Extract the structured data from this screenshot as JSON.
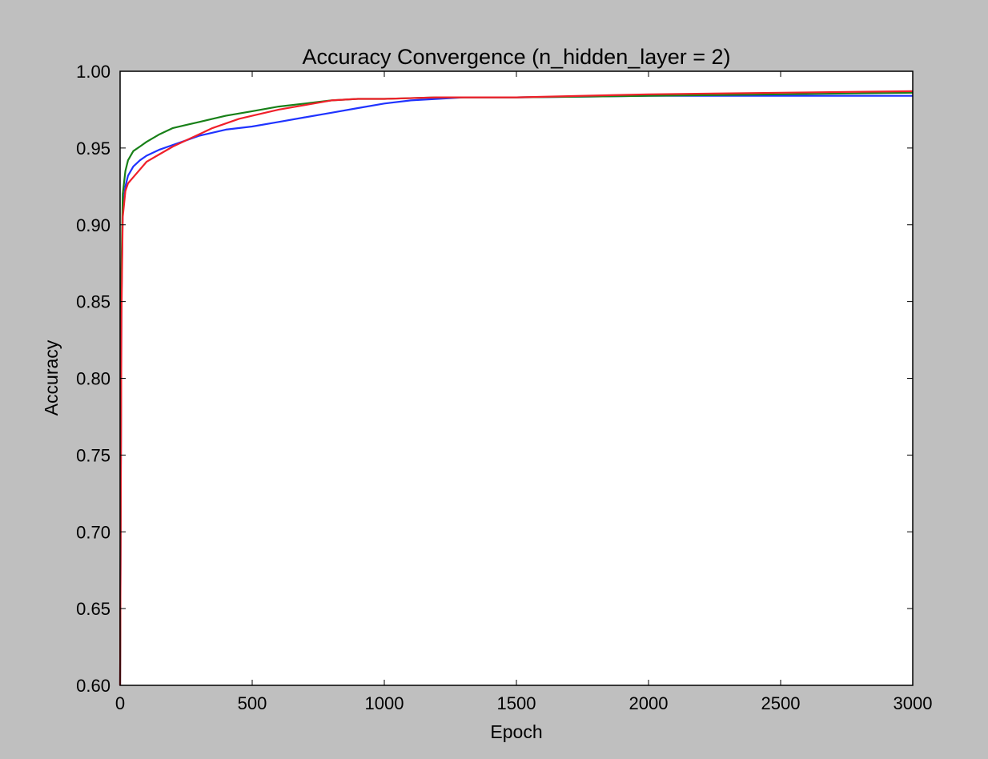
{
  "chart_data": {
    "type": "line",
    "title": "Accuracy Convergence (n_hidden_layer = 2)",
    "xlabel": "Epoch",
    "ylabel": "Accuracy",
    "xlim": [
      0,
      3000
    ],
    "ylim": [
      0.6,
      1.0
    ],
    "xticks": [
      0,
      500,
      1000,
      1500,
      2000,
      2500,
      3000
    ],
    "xtick_labels": [
      "0",
      "500",
      "1000",
      "1500",
      "2000",
      "2500",
      "3000"
    ],
    "yticks": [
      0.6,
      0.65,
      0.7,
      0.75,
      0.8,
      0.85,
      0.9,
      0.95,
      1.0
    ],
    "ytick_labels": [
      "0.60",
      "0.65",
      "0.70",
      "0.75",
      "0.80",
      "0.85",
      "0.90",
      "0.95",
      "1.00"
    ],
    "grid": false,
    "legend": "none",
    "series": [
      {
        "color": "#1f33ff",
        "x": [
          0,
          5,
          10,
          20,
          30,
          50,
          75,
          100,
          150,
          200,
          250,
          300,
          400,
          500,
          600,
          700,
          800,
          900,
          1000,
          1100,
          1200,
          1300,
          1500,
          2000,
          2500,
          3000
        ],
        "y": [
          0.6,
          0.85,
          0.91,
          0.925,
          0.932,
          0.938,
          0.942,
          0.945,
          0.949,
          0.952,
          0.955,
          0.958,
          0.962,
          0.964,
          0.967,
          0.97,
          0.973,
          0.976,
          0.979,
          0.981,
          0.982,
          0.983,
          0.983,
          0.984,
          0.984,
          0.984
        ]
      },
      {
        "color": "#188018",
        "x": [
          0,
          5,
          10,
          20,
          30,
          50,
          75,
          100,
          150,
          200,
          250,
          300,
          400,
          500,
          600,
          700,
          800,
          900,
          1000,
          1200,
          1500,
          2000,
          2500,
          3000
        ],
        "y": [
          0.6,
          0.87,
          0.92,
          0.935,
          0.942,
          0.948,
          0.951,
          0.954,
          0.959,
          0.963,
          0.965,
          0.967,
          0.971,
          0.974,
          0.977,
          0.979,
          0.981,
          0.982,
          0.982,
          0.983,
          0.983,
          0.984,
          0.985,
          0.986
        ]
      },
      {
        "color": "#f0202a",
        "x": [
          0,
          5,
          10,
          20,
          30,
          50,
          75,
          100,
          150,
          200,
          250,
          300,
          350,
          400,
          450,
          500,
          600,
          700,
          800,
          900,
          1000,
          1200,
          1500,
          2000,
          2500,
          3000
        ],
        "y": [
          0.6,
          0.84,
          0.905,
          0.922,
          0.927,
          0.931,
          0.936,
          0.941,
          0.946,
          0.951,
          0.955,
          0.959,
          0.963,
          0.966,
          0.969,
          0.971,
          0.975,
          0.978,
          0.981,
          0.982,
          0.982,
          0.983,
          0.983,
          0.985,
          0.986,
          0.987
        ]
      }
    ]
  }
}
